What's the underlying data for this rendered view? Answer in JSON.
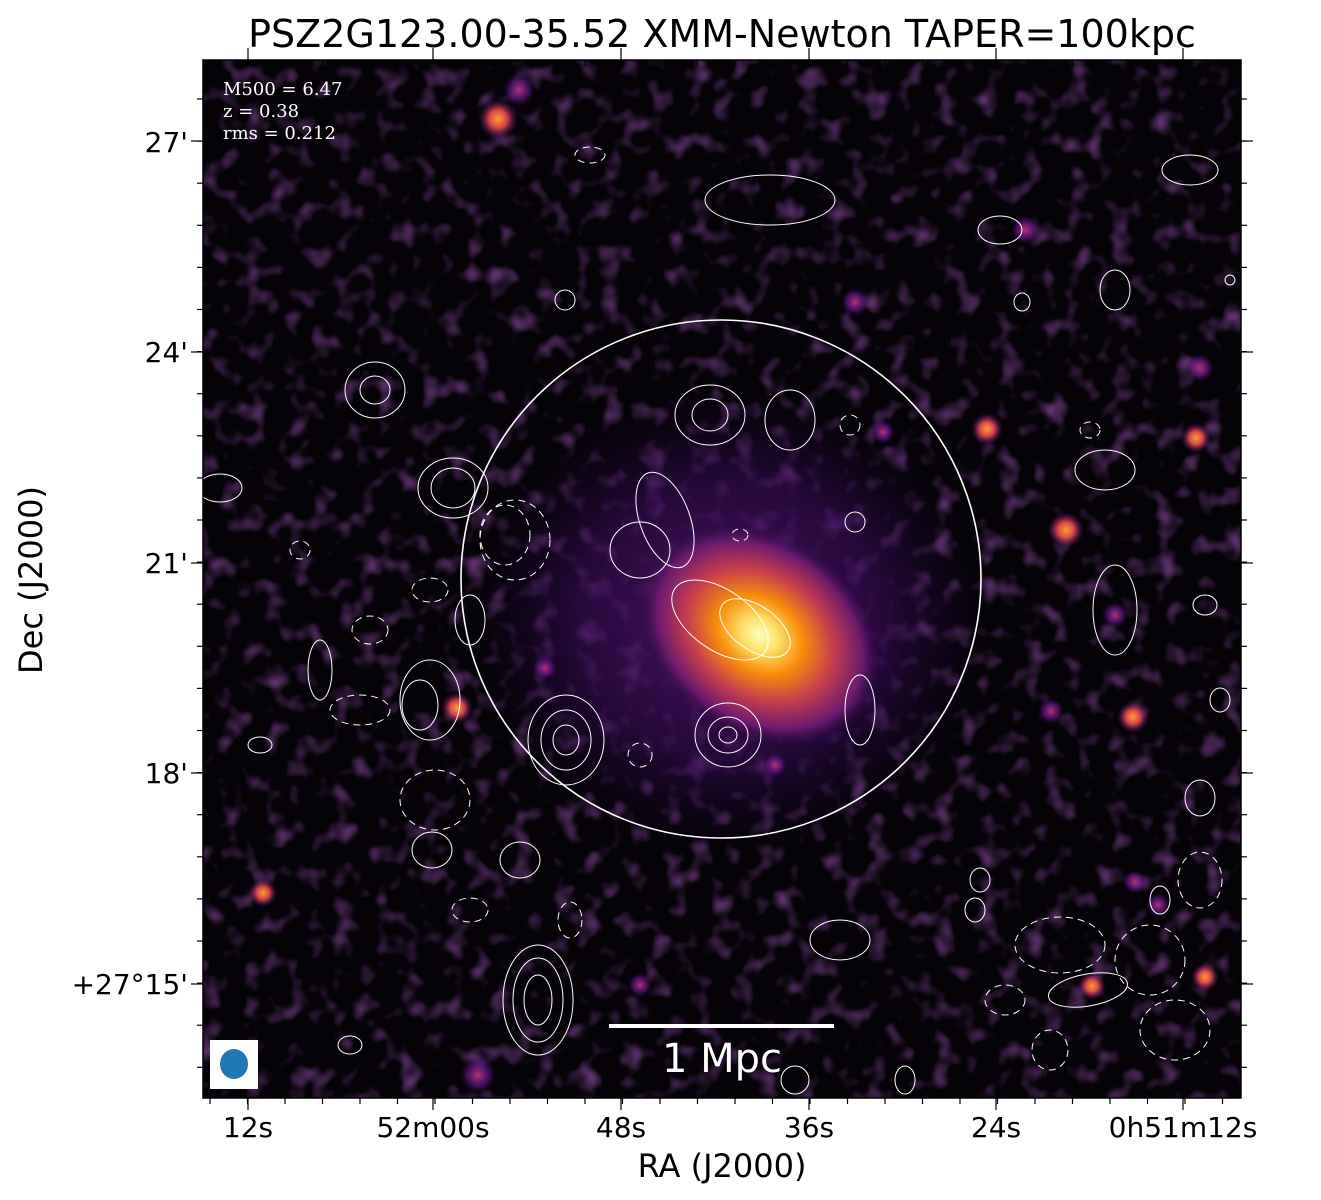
{
  "title": "PSZ2G123.00-35.52 XMM-Newton TAPER=100kpc",
  "info": {
    "m500": "M500 = 6.47",
    "z": "z = 0.38",
    "rms": "rms = 0.212"
  },
  "axes": {
    "xlabel": "RA (J2000)",
    "ylabel": "Dec (J2000)",
    "x_ticks": [
      "12s",
      "52m00s",
      "48s",
      "36s",
      "24s",
      "0h51m12s"
    ],
    "y_ticks": [
      "27'",
      "24'",
      "21'",
      "18'",
      "+27°15'"
    ]
  },
  "scalebar": {
    "label": "1 Mpc"
  },
  "colors": {
    "background_map": "#050308",
    "colormap": "inferno",
    "contours": "#ffffff",
    "beam": "#1f77b4"
  }
}
